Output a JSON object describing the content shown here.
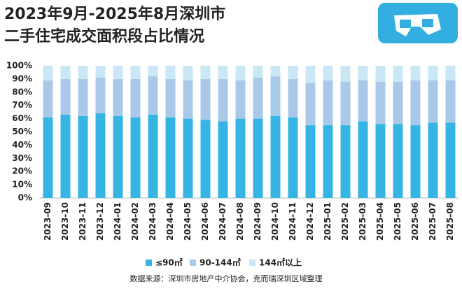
{
  "chart_data": {
    "type": "stacked_bar",
    "title_lines": [
      "2023年9月-2025年8月深圳市",
      "二手住宅成交面积段占比情况"
    ],
    "categories": [
      "2023-09",
      "2023-10",
      "2023-11",
      "2023-12",
      "2024-01",
      "2024-02",
      "2024-03",
      "2024-04",
      "2024-05",
      "2024-06",
      "2024-07",
      "2024-08",
      "2024-09",
      "2024-10",
      "2024-11",
      "2024-12",
      "2025-01",
      "2025-02",
      "2025-03",
      "2025-04",
      "2025-05",
      "2025-06",
      "2025-07",
      "2025-08"
    ],
    "series": [
      {
        "name": "≤90㎡",
        "color": "#36b4e3",
        "values": [
          61,
          63,
          62,
          64,
          62,
          61,
          63,
          61,
          60,
          59,
          58,
          60,
          60,
          62,
          61,
          55,
          55,
          55,
          58,
          56,
          56,
          55,
          57,
          57
        ]
      },
      {
        "name": "90-144㎡",
        "color": "#a8c9e8",
        "values": [
          28,
          27,
          28,
          27,
          28,
          29,
          29,
          29,
          29,
          31,
          32,
          29,
          31,
          30,
          29,
          32,
          34,
          33,
          31,
          32,
          32,
          34,
          32,
          32
        ]
      },
      {
        "name": "144㎡以上",
        "color": "#cae7f5",
        "values": [
          11,
          10,
          10,
          9,
          10,
          10,
          8,
          10,
          11,
          10,
          10,
          11,
          9,
          8,
          10,
          13,
          11,
          12,
          11,
          12,
          12,
          11,
          11,
          11
        ]
      }
    ],
    "ylim": [
      0,
      100
    ],
    "yticks": [
      {
        "value": 0,
        "label": "0%"
      },
      {
        "value": 10,
        "label": "10%"
      },
      {
        "value": 20,
        "label": "20%"
      },
      {
        "value": 30,
        "label": "30%"
      },
      {
        "value": 40,
        "label": "40%"
      },
      {
        "value": 50,
        "label": "50%"
      },
      {
        "value": 60,
        "label": "60%"
      },
      {
        "value": 70,
        "label": "70%"
      },
      {
        "value": 80,
        "label": "80%"
      },
      {
        "value": 90,
        "label": "90%"
      },
      {
        "value": 100,
        "label": "100%"
      }
    ],
    "source": "数据来源：深圳市房地产中介协会，克而瑞深圳区域整理"
  }
}
